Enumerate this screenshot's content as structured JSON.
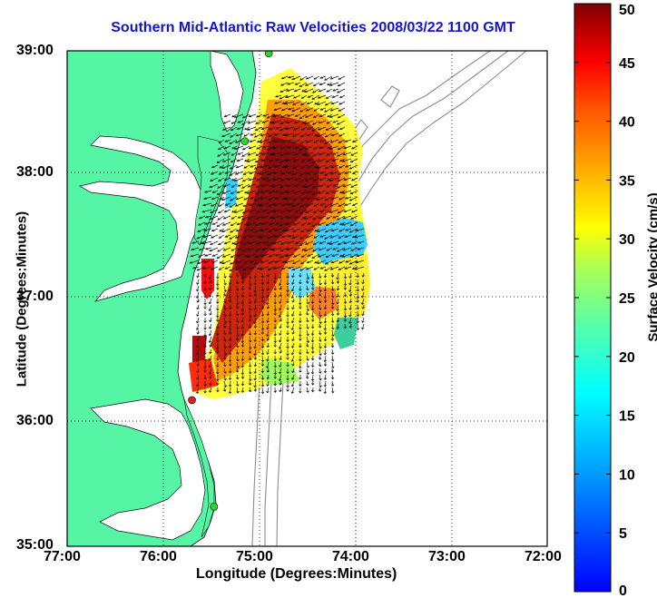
{
  "title": "Southern Mid-Atlantic Raw Velocities 2008/03/22 1100 GMT",
  "axes": {
    "xlabel": "Longitude (Degrees:Minutes)",
    "ylabel": "Latitude (Degrees:Minutes)",
    "xticks": [
      "77:00",
      "76:00",
      "75:00",
      "74:00",
      "73:00",
      "72:00"
    ],
    "yticks": [
      "39:00",
      "38:00",
      "37:00",
      "36:00",
      "35:00"
    ],
    "xlim": [
      -77,
      -72
    ],
    "ylim": [
      35,
      39
    ],
    "grid": true
  },
  "colorbar": {
    "label": "Surface Velocity (cm/s)",
    "ticks": [
      "50",
      "45",
      "40",
      "35",
      "30",
      "25",
      "20",
      "15",
      "10",
      "5",
      "0"
    ],
    "range": [
      0,
      50
    ],
    "colormap": "jet"
  },
  "colors": {
    "land": "#55f5a5",
    "ocean": "#ffffff",
    "title": "#1414d2",
    "bathymetry": "#8c8c8c",
    "station_green": "#22dd22",
    "station_red": "#e02020"
  },
  "stations": [
    {
      "lon": -74.9,
      "lat": 38.98,
      "color": "green"
    },
    {
      "lon": -75.15,
      "lat": 38.27,
      "color": "green"
    },
    {
      "lon": -75.7,
      "lat": 36.18,
      "color": "red"
    },
    {
      "lon": -75.47,
      "lat": 35.32,
      "color": "green"
    }
  ]
}
